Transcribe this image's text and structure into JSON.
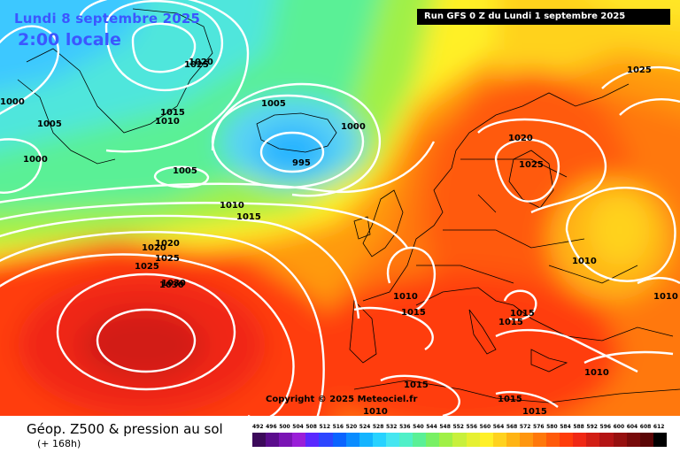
{
  "header": {
    "valid_date": "Lundi 8 septembre 2025",
    "valid_time": "2:00 locale",
    "run_info": "Run GFS 0 Z du Lundi 1 septembre 2025"
  },
  "copyright": "Copyright © 2025 Meteociel.fr",
  "footer": {
    "parameter_title": "Géop. Z500 & pression au sol",
    "forecast_hour": "(+ 168h)"
  },
  "isobar_labels": [
    "1030",
    "1025",
    "1020",
    "1015",
    "1010",
    "1000",
    "1005",
    "1000",
    "1005",
    "1000",
    "995",
    "1010",
    "1015",
    "1020",
    "1025",
    "1030",
    "1005",
    "1025",
    "1020",
    "1025",
    "1020",
    "1010",
    "1015",
    "1015",
    "1015",
    "1010",
    "1015",
    "1015",
    "1010",
    "1010",
    "1015",
    "1010",
    "1025"
  ],
  "scale": {
    "labels": [
      "492",
      "496",
      "500",
      "504",
      "508",
      "512",
      "516",
      "520",
      "524",
      "528",
      "532",
      "536",
      "540",
      "544",
      "548",
      "552",
      "556",
      "560",
      "564",
      "568",
      "572",
      "576",
      "580",
      "584",
      "588",
      "592",
      "596",
      "600",
      "604",
      "608",
      "612"
    ],
    "colors": [
      "#3c0a5a",
      "#5a0c8c",
      "#7a14b4",
      "#9a1ed8",
      "#5a28ff",
      "#2d46ff",
      "#0a64ff",
      "#0a8cff",
      "#14b4ff",
      "#28d2ff",
      "#46e6f0",
      "#50f0c8",
      "#5af096",
      "#78f064",
      "#a0f046",
      "#c8f03c",
      "#e6f032",
      "#fff028",
      "#ffd21e",
      "#ffb414",
      "#ff960f",
      "#ff780a",
      "#ff5a0a",
      "#ff3c0a",
      "#f02814",
      "#d21e14",
      "#b41414",
      "#96100f",
      "#780a0a",
      "#5a0505",
      "#000000"
    ]
  },
  "colors": {
    "title_blue": "#3b57ff",
    "isobar": "#ffffff",
    "coastline": "#000000"
  }
}
